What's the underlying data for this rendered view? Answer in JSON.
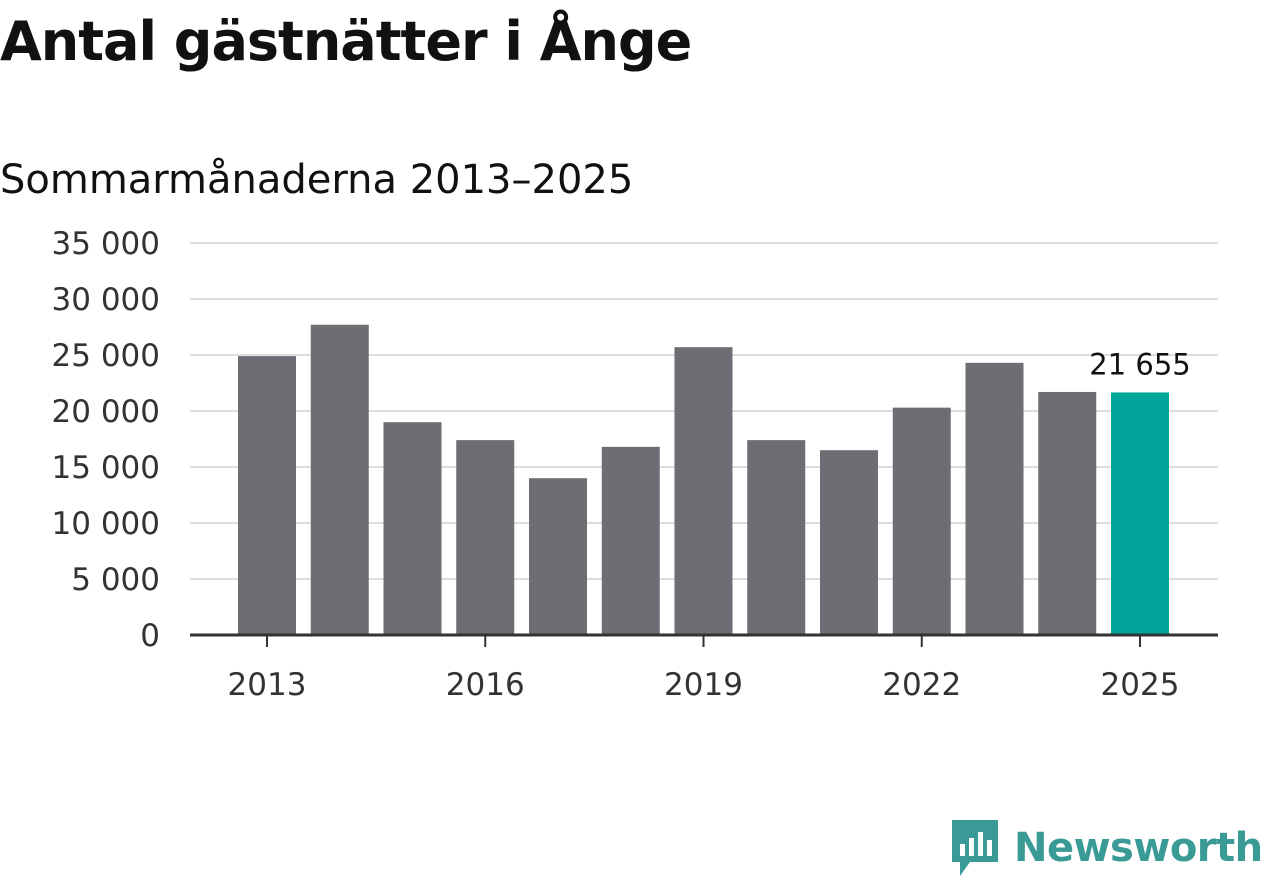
{
  "title": "Antal gästnätter i Ånge",
  "subtitle": "Sommarmånaderna 2013–2025",
  "brand": {
    "name": "Newsworthy",
    "icon": "newsworthy-logo-icon",
    "color": "#3a9a95"
  },
  "colors": {
    "bar": "#6e6d73",
    "highlight": "#00a499",
    "grid": "#dddddd",
    "axis": "#333333"
  },
  "chart_data": {
    "type": "bar",
    "x": [
      2013,
      2014,
      2015,
      2016,
      2017,
      2018,
      2019,
      2020,
      2021,
      2022,
      2023,
      2024,
      2025
    ],
    "values": [
      24900,
      27700,
      19000,
      17400,
      14000,
      16800,
      25700,
      17400,
      16500,
      20300,
      24300,
      21700,
      21655
    ],
    "ylim": [
      0,
      35000
    ],
    "yticks": [
      0,
      5000,
      10000,
      15000,
      20000,
      25000,
      30000,
      35000
    ],
    "ytick_labels": [
      "0",
      "5 000",
      "10 000",
      "15 000",
      "20 000",
      "25 000",
      "30 000",
      "35 000"
    ],
    "xtick_values": [
      2013,
      2016,
      2019,
      2022,
      2025
    ],
    "xtick_labels": [
      "2013",
      "2016",
      "2019",
      "2022",
      "2025"
    ],
    "highlight_year": 2025,
    "data_label": {
      "year": 2025,
      "text": "21 655"
    },
    "grid": true,
    "xlabel": "",
    "ylabel": ""
  }
}
